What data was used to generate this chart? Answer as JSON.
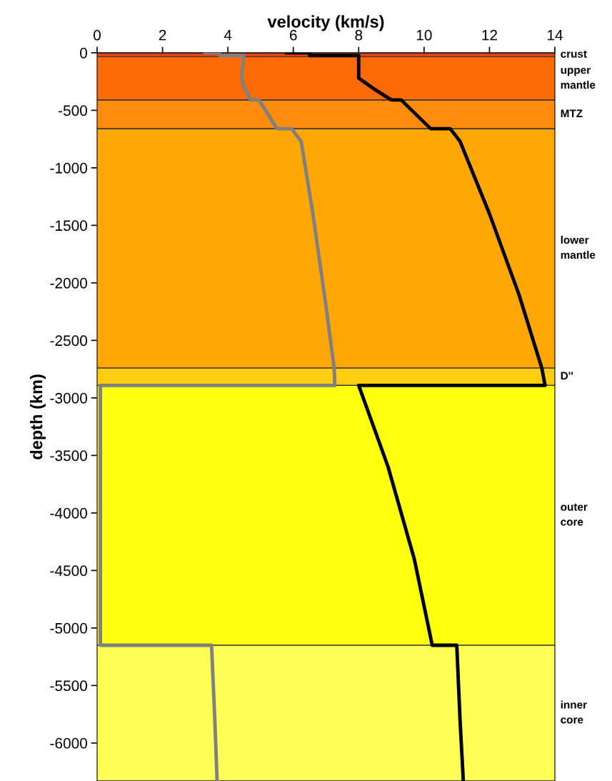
{
  "chart_data": {
    "type": "line",
    "xlabel": "velocity (km/s)",
    "ylabel": "depth (km)",
    "xlim": [
      0,
      14
    ],
    "xticks": [
      0,
      2,
      4,
      6,
      8,
      10,
      12,
      14
    ],
    "ylim": [
      -6330,
      0
    ],
    "yticks": [
      -6000,
      -5500,
      -5000,
      -4500,
      -4000,
      -3500,
      -3000,
      -2500,
      -2000,
      -1500,
      -1000,
      -500,
      0
    ],
    "grid": false,
    "legend": false,
    "marker": "none",
    "line_style": "solid",
    "bands": [
      {
        "axis": "y",
        "from": -35,
        "to": 0,
        "label": "crust",
        "color": "#e0401c"
      },
      {
        "axis": "y",
        "from": -410,
        "to": -35,
        "label": "upper\nmantle",
        "color": "#ff6a08"
      },
      {
        "axis": "y",
        "from": -660,
        "to": -410,
        "label": "MTZ",
        "color": "#ff8c0c"
      },
      {
        "axis": "y",
        "from": -2740,
        "to": -660,
        "label": "lower\nmantle",
        "color": "#ffa704"
      },
      {
        "axis": "y",
        "from": -2891,
        "to": -2740,
        "label": "D''",
        "color": "#ffcc10"
      },
      {
        "axis": "y",
        "from": -5150,
        "to": -2891,
        "label": "outer\ncore",
        "color": "#ffff10"
      },
      {
        "axis": "y",
        "from": -6330,
        "to": -5150,
        "label": "inner\ncore",
        "color": "#ffff55"
      }
    ],
    "series": [
      {
        "color": "#808080",
        "x": [
          3.3,
          3.75,
          3.75,
          4.48,
          4.42,
          4.5,
          4.7,
          4.95,
          5.5,
          5.95,
          6.24,
          6.6,
          7.0,
          7.25,
          7.27,
          0.1,
          0.1,
          3.5,
          3.6,
          3.67
        ],
        "values": [
          0,
          0,
          -24,
          -24,
          -220,
          -300,
          -410,
          -410,
          -660,
          -660,
          -770,
          -1400,
          -2200,
          -2740,
          -2891,
          -2891,
          -5150,
          -5150,
          -5800,
          -6330
        ]
      },
      {
        "color": "#000000",
        "x": [
          5.8,
          6.5,
          6.5,
          8.0,
          8.0,
          8.5,
          9.0,
          9.3,
          10.2,
          10.8,
          11.1,
          12.0,
          12.9,
          13.6,
          13.7,
          8.0,
          8.9,
          9.7,
          10.25,
          11.0,
          11.1,
          11.2
        ],
        "values": [
          0,
          0,
          -24,
          -24,
          -220,
          -320,
          -410,
          -410,
          -660,
          -660,
          -770,
          -1400,
          -2100,
          -2740,
          -2891,
          -2891,
          -3600,
          -4400,
          -5150,
          -5150,
          -5800,
          -6330
        ]
      }
    ]
  }
}
